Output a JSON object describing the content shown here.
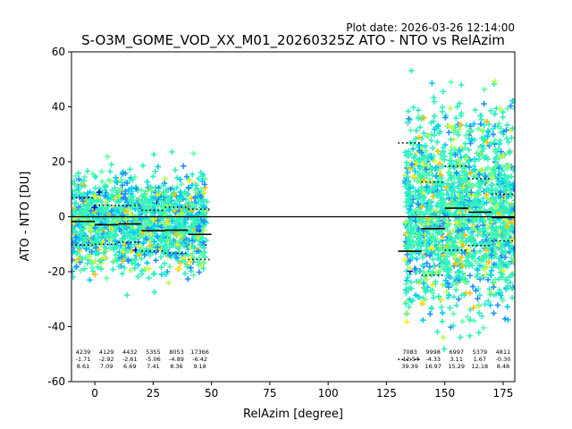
{
  "chart_data": {
    "type": "scatter",
    "title": "S-O3M_GOME_VOD_XX_M01_20260325Z ATO - NTO vs RelAzim",
    "plot_date": "Plot date: 2026-03-26 12:14:00",
    "xlabel": "RelAzim [degree]",
    "ylabel": "ATO - NTO [DU]",
    "xlim": [
      -10,
      180
    ],
    "ylim": [
      -60,
      60
    ],
    "x_ticks": [
      0,
      25,
      50,
      75,
      100,
      125,
      150,
      175
    ],
    "y_ticks": [
      -60,
      -40,
      -20,
      0,
      20,
      40,
      60
    ],
    "zero_line": 0,
    "point_density_colors": [
      "#2ef0c0",
      "#5cffa8",
      "#1e90ff",
      "#00c8ff",
      "#b0ff50",
      "#f0f020",
      "#ffc000",
      "#0000e0"
    ],
    "clusters": [
      {
        "x_range": [
          -10,
          48
        ],
        "y_center": -2,
        "y_spread": 24
      },
      {
        "x_range": [
          133,
          180
        ],
        "y_center": 2,
        "y_spread": 50
      }
    ],
    "bin_stats": [
      {
        "x_start": -10,
        "x_end": 0,
        "count": "4239",
        "mean": "-1.71",
        "std": "8.61",
        "mean_v": -1.71,
        "std_v": 8.61
      },
      {
        "x_start": 0,
        "x_end": 10,
        "count": "4129",
        "mean": "-2.92",
        "std": "7.09",
        "mean_v": -2.92,
        "std_v": 7.09
      },
      {
        "x_start": 10,
        "x_end": 20,
        "count": "4432",
        "mean": "-2.61",
        "std": "6.69",
        "mean_v": -2.61,
        "std_v": 6.69
      },
      {
        "x_start": 20,
        "x_end": 30,
        "count": "5355",
        "mean": "-5.06",
        "std": "7.41",
        "mean_v": -5.06,
        "std_v": 7.41
      },
      {
        "x_start": 30,
        "x_end": 40,
        "count": "8053",
        "mean": "-4.89",
        "std": "8.36",
        "mean_v": -4.89,
        "std_v": 8.36
      },
      {
        "x_start": 40,
        "x_end": 50,
        "count": "17366",
        "mean": "-6.42",
        "std": "9.18",
        "mean_v": -6.42,
        "std_v": 9.18
      },
      {
        "x_start": 130,
        "x_end": 140,
        "count": "7083",
        "mean": "-12.54",
        "std": "39.39",
        "mean_v": -12.54,
        "std_v": 39.39
      },
      {
        "x_start": 140,
        "x_end": 150,
        "count": "9998",
        "mean": "-4.33",
        "std": "16.97",
        "mean_v": -4.33,
        "std_v": 16.97
      },
      {
        "x_start": 150,
        "x_end": 160,
        "count": "6997",
        "mean": "3.11",
        "std": "15.29",
        "mean_v": 3.11,
        "std_v": 15.29
      },
      {
        "x_start": 160,
        "x_end": 170,
        "count": "5379",
        "mean": "1.67",
        "std": "12.18",
        "mean_v": 1.67,
        "std_v": 12.18
      },
      {
        "x_start": 170,
        "x_end": 180,
        "count": "4811",
        "mean": "-0.30",
        "std": "8.48",
        "mean_v": -0.3,
        "std_v": 8.48
      }
    ]
  }
}
